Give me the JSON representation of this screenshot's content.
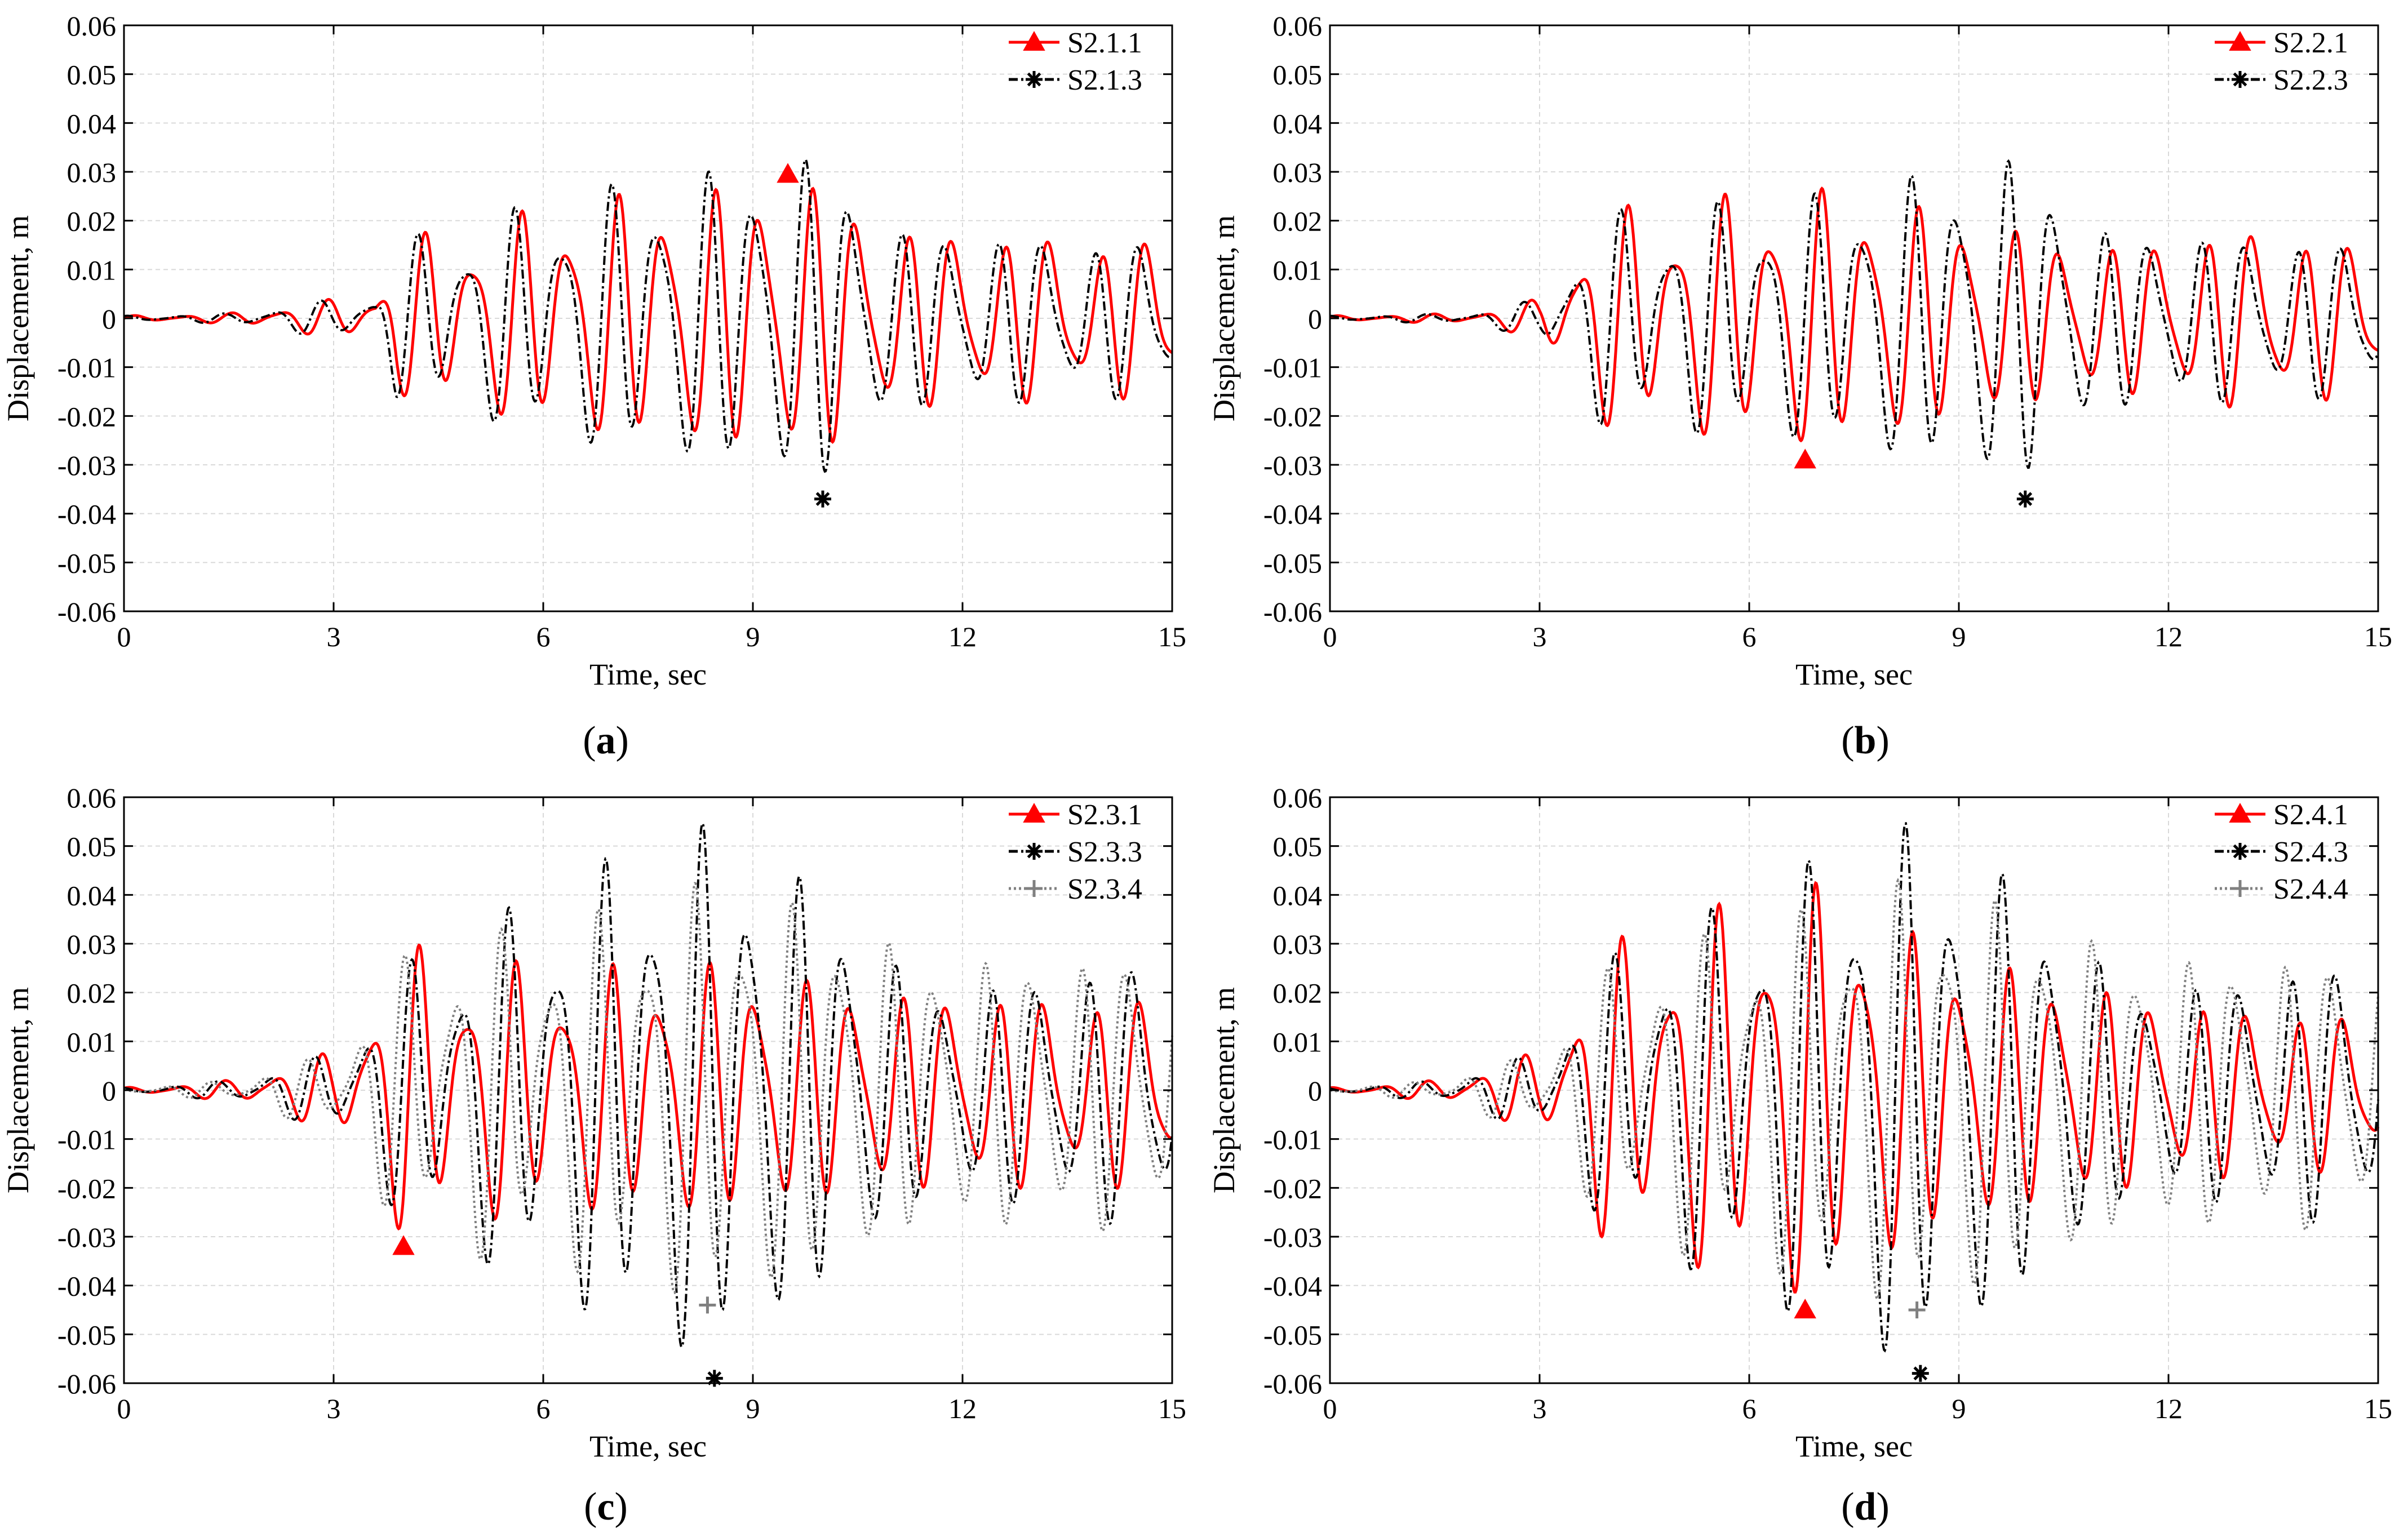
{
  "colors": {
    "s1": "#ff0000",
    "s3": "#000000",
    "s4": "#808080",
    "grid": "#d9d9d9"
  },
  "chart_data": [
    {
      "type": "line",
      "panel": "a",
      "caption_letter": "a",
      "xlabel": "Time, sec",
      "ylabel": "Displacement, m",
      "xlim": [
        0,
        15
      ],
      "ylim": [
        -0.06,
        0.06
      ],
      "xticks": [
        0,
        3,
        6,
        9,
        12,
        15
      ],
      "xtick_labels": [
        "0",
        "3",
        "6",
        "9",
        "12",
        "15"
      ],
      "ytick_labels": [
        "0.06",
        "0.05",
        "0.04",
        "0.03",
        "0.02",
        "0.01",
        "0",
        "-0.01",
        "-0.02",
        "-0.03",
        "-0.04",
        "-0.05",
        "-0.06"
      ],
      "legend_position": "top-right",
      "series": [
        {
          "name": "S2.1.1",
          "style": "solid",
          "color": "#ff0000",
          "marker": "triangle",
          "peak": [
            9.5,
            0.0295
          ],
          "onset": 3.75,
          "amp": 0.022,
          "envelope": [
            [
              0,
              0.0005
            ],
            [
              1.5,
              0.001
            ],
            [
              2.5,
              0.003
            ],
            [
              3.6,
              0.005
            ],
            [
              3.9,
              0.016
            ],
            [
              6.8,
              0.026
            ],
            [
              9.5,
              0.03
            ],
            [
              10.0,
              0.03
            ],
            [
              11.0,
              0.02
            ],
            [
              15,
              0.016
            ]
          ]
        },
        {
          "name": "S2.1.3",
          "style": "dashdot",
          "color": "#000000",
          "marker": "asterisk",
          "peak": [
            10.0,
            -0.037
          ],
          "onset": 3.75,
          "amp": 0.024,
          "envelope": [
            [
              0,
              0.0005
            ],
            [
              1.5,
              0.001
            ],
            [
              2.5,
              0.003
            ],
            [
              3.6,
              0.005
            ],
            [
              3.9,
              0.016
            ],
            [
              6.8,
              0.028
            ],
            [
              9.5,
              0.035
            ],
            [
              10.0,
              0.037
            ],
            [
              11.0,
              0.02
            ],
            [
              15,
              0.016
            ]
          ]
        }
      ]
    },
    {
      "type": "line",
      "panel": "b",
      "caption_letter": "b",
      "xlabel": "Time, sec",
      "ylabel": "Displacement, m",
      "xlim": [
        0,
        15
      ],
      "ylim": [
        -0.06,
        0.06
      ],
      "xticks": [
        0,
        3,
        6,
        9,
        12,
        15
      ],
      "xtick_labels": [
        "0",
        "3",
        "6",
        "9",
        "12",
        "15"
      ],
      "ytick_labels": [
        "0.06",
        "0.05",
        "0.04",
        "0.03",
        "0.02",
        "0.01",
        "0",
        "-0.01",
        "-0.02",
        "-0.03",
        "-0.04",
        "-0.05",
        "-0.06"
      ],
      "legend_position": "top-right",
      "series": [
        {
          "name": "S2.2.1",
          "style": "solid",
          "color": "#ff0000",
          "marker": "triangle",
          "peak": [
            6.8,
            -0.029
          ],
          "onset": 3.7,
          "amp": 0.02,
          "envelope": [
            [
              0,
              0.0005
            ],
            [
              2,
              0.001
            ],
            [
              3,
              0.004
            ],
            [
              3.8,
              0.022
            ],
            [
              6.8,
              0.028
            ],
            [
              8,
              0.026
            ],
            [
              11,
              0.016
            ],
            [
              13.5,
              0.02
            ],
            [
              15,
              0.014
            ]
          ]
        },
        {
          "name": "S2.2.3",
          "style": "dashdot",
          "color": "#000000",
          "marker": "asterisk",
          "peak": [
            9.95,
            -0.037
          ],
          "onset": 3.9,
          "amp": 0.022,
          "envelope": [
            [
              0,
              0.0005
            ],
            [
              2,
              0.001
            ],
            [
              3,
              0.004
            ],
            [
              3.9,
              0.022
            ],
            [
              6.8,
              0.026
            ],
            [
              9.5,
              0.035
            ],
            [
              10,
              0.036
            ],
            [
              11,
              0.02
            ],
            [
              15,
              0.016
            ]
          ]
        }
      ]
    },
    {
      "type": "line",
      "panel": "c",
      "caption_letter": "c",
      "xlabel": "Time, sec",
      "ylabel": "Displacement, m",
      "xlim": [
        0,
        15
      ],
      "ylim": [
        -0.06,
        0.06
      ],
      "xticks": [
        0,
        3,
        6,
        9,
        12,
        15
      ],
      "xtick_labels": [
        "0",
        "3",
        "6",
        "9",
        "12",
        "15"
      ],
      "ytick_labels": [
        "0.06",
        "0.05",
        "0.04",
        "0.03",
        "0.02",
        "0.01",
        "0",
        "-0.01",
        "-0.02",
        "-0.03",
        "-0.04",
        "-0.05",
        "-0.06"
      ],
      "legend_position": "top-right",
      "series": [
        {
          "name": "S2.3.1",
          "style": "solid",
          "color": "#ff0000",
          "marker": "triangle",
          "peak": [
            4.0,
            -0.032
          ],
          "onset": 1.5,
          "amp": 0.02,
          "envelope": [
            [
              0,
              0.0005
            ],
            [
              1.5,
              0.002
            ],
            [
              3,
              0.008
            ],
            [
              4,
              0.03
            ],
            [
              6,
              0.026
            ],
            [
              8.5,
              0.028
            ],
            [
              11,
              0.022
            ],
            [
              15,
              0.02
            ]
          ]
        },
        {
          "name": "S2.3.3",
          "style": "dashdot",
          "color": "#000000",
          "marker": "asterisk",
          "peak": [
            8.45,
            -0.059
          ],
          "onset": 1.5,
          "amp": 0.03,
          "envelope": [
            [
              0,
              0.0005
            ],
            [
              1.5,
              0.002
            ],
            [
              3,
              0.008
            ],
            [
              4,
              0.026
            ],
            [
              6,
              0.042
            ],
            [
              8,
              0.058
            ],
            [
              8.5,
              0.058
            ],
            [
              10,
              0.045
            ],
            [
              11.5,
              0.022
            ],
            [
              15,
              0.03
            ]
          ]
        },
        {
          "name": "S2.3.4",
          "style": "dotted",
          "color": "#808080",
          "marker": "plus",
          "peak": [
            8.35,
            -0.044
          ],
          "onset": 1.5,
          "amp": 0.028,
          "envelope": [
            [
              0,
              0.0005
            ],
            [
              1.5,
              0.002
            ],
            [
              3,
              0.008
            ],
            [
              4.2,
              0.032
            ],
            [
              6,
              0.035
            ],
            [
              8.4,
              0.046
            ],
            [
              10,
              0.04
            ],
            [
              11.5,
              0.03
            ],
            [
              15,
              0.03
            ]
          ]
        }
      ]
    },
    {
      "type": "line",
      "panel": "d",
      "caption_letter": "d",
      "xlabel": "Time, sec",
      "ylabel": "Displacement, m",
      "xlim": [
        0,
        15
      ],
      "ylim": [
        -0.06,
        0.06
      ],
      "xticks": [
        0,
        3,
        6,
        9,
        12,
        15
      ],
      "xtick_labels": [
        "0",
        "3",
        "6",
        "9",
        "12",
        "15"
      ],
      "ytick_labels": [
        "0.06",
        "0.05",
        "0.04",
        "0.03",
        "0.02",
        "0.01",
        "0",
        "-0.01",
        "-0.02",
        "-0.03",
        "-0.04",
        "-0.05",
        "-0.06"
      ],
      "legend_position": "top-right",
      "series": [
        {
          "name": "S2.4.1",
          "style": "solid",
          "color": "#ff0000",
          "marker": "triangle",
          "peak": [
            6.8,
            -0.045
          ],
          "onset": 1.5,
          "amp": 0.022,
          "envelope": [
            [
              0,
              0.0005
            ],
            [
              1.5,
              0.002
            ],
            [
              3,
              0.008
            ],
            [
              3.9,
              0.03
            ],
            [
              6.8,
              0.045
            ],
            [
              9,
              0.03
            ],
            [
              12,
              0.02
            ],
            [
              15,
              0.016
            ]
          ]
        },
        {
          "name": "S2.4.3",
          "style": "dashdot",
          "color": "#000000",
          "marker": "asterisk",
          "peak": [
            8.45,
            -0.058
          ],
          "onset": 1.5,
          "amp": 0.03,
          "envelope": [
            [
              0,
              0.0005
            ],
            [
              1.5,
              0.002
            ],
            [
              3,
              0.008
            ],
            [
              4,
              0.028
            ],
            [
              6,
              0.042
            ],
            [
              8,
              0.058
            ],
            [
              8.5,
              0.058
            ],
            [
              10,
              0.045
            ],
            [
              11.5,
              0.022
            ],
            [
              15,
              0.03
            ]
          ]
        },
        {
          "name": "S2.4.4",
          "style": "dotted",
          "color": "#808080",
          "marker": "plus",
          "peak": [
            8.4,
            -0.045
          ],
          "onset": 1.5,
          "amp": 0.028,
          "envelope": [
            [
              0,
              0.0005
            ],
            [
              1.5,
              0.002
            ],
            [
              3,
              0.008
            ],
            [
              4.2,
              0.03
            ],
            [
              6,
              0.035
            ],
            [
              8.4,
              0.047
            ],
            [
              10,
              0.04
            ],
            [
              11.5,
              0.03
            ],
            [
              15,
              0.03
            ]
          ]
        }
      ]
    }
  ]
}
